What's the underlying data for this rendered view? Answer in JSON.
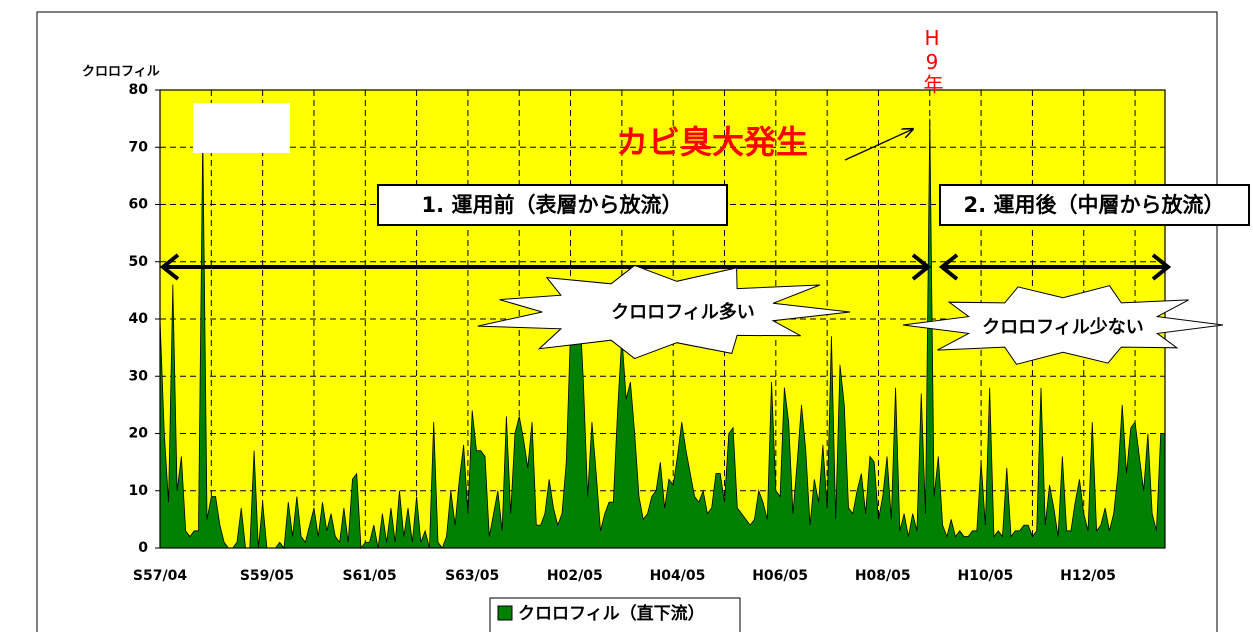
{
  "chart_data": {
    "type": "area",
    "y_label": "クロロフィル",
    "annotations": {
      "h9": "H9年",
      "event": "カビ臭大発生",
      "before": "1. 運用前（表層から放流）",
      "after": "2. 運用後（中層から放流）",
      "many": "クロロフィル多い",
      "few": "クロロフィル少ない"
    },
    "categories": [
      "S57/04",
      null,
      null,
      null,
      null,
      null,
      null,
      null,
      null,
      null,
      null,
      null,
      null,
      null,
      null,
      null,
      null,
      null,
      null,
      null,
      null,
      null,
      null,
      null,
      null,
      "S59/05",
      null,
      null,
      null,
      null,
      null,
      null,
      null,
      null,
      null,
      null,
      null,
      null,
      null,
      null,
      null,
      null,
      null,
      null,
      null,
      null,
      null,
      null,
      null,
      "S61/05",
      null,
      null,
      null,
      null,
      null,
      null,
      null,
      null,
      null,
      null,
      null,
      null,
      null,
      null,
      null,
      null,
      null,
      null,
      null,
      null,
      null,
      null,
      null,
      "S63/05",
      null,
      null,
      null,
      null,
      null,
      null,
      null,
      null,
      null,
      null,
      null,
      null,
      null,
      null,
      null,
      null,
      null,
      null,
      null,
      null,
      null,
      null,
      null,
      "H02/05",
      null,
      null,
      null,
      null,
      null,
      null,
      null,
      null,
      null,
      null,
      null,
      null,
      null,
      null,
      null,
      null,
      null,
      null,
      null,
      null,
      null,
      null,
      null,
      "H04/05",
      null,
      null,
      null,
      null,
      null,
      null,
      null,
      null,
      null,
      null,
      null,
      null,
      null,
      null,
      null,
      null,
      null,
      null,
      null,
      null,
      null,
      null,
      null,
      "H06/05",
      null,
      null,
      null,
      null,
      null,
      null,
      null,
      null,
      null,
      null,
      null,
      null,
      null,
      null,
      null,
      null,
      null,
      null,
      null,
      null,
      null,
      null,
      null,
      "H08/05",
      null,
      null,
      null,
      null,
      null,
      null,
      null,
      null,
      null,
      null,
      null,
      null,
      null,
      null,
      null,
      null,
      null,
      null,
      null,
      null,
      null,
      null,
      null,
      "H10/05",
      null,
      null,
      null,
      null,
      null,
      null,
      null,
      null,
      null,
      null,
      null,
      null,
      null,
      null,
      null,
      null,
      null,
      null,
      null,
      null,
      null,
      null,
      null,
      "H12/05",
      null,
      null,
      null,
      null,
      null,
      null,
      null,
      null,
      null,
      null,
      null,
      null,
      null,
      null,
      null,
      null,
      null,
      null
    ],
    "series": [
      {
        "name": "クロロフィル（直下流）",
        "color": "#008000",
        "values": [
          40,
          20,
          8,
          46,
          10,
          16,
          3,
          2,
          3,
          3,
          72,
          5,
          9,
          9,
          4,
          1,
          0,
          0,
          1,
          7,
          0,
          0,
          17,
          0,
          8,
          0,
          0,
          0,
          1,
          0,
          8,
          2,
          9,
          2,
          1,
          4,
          7,
          2,
          8,
          3,
          6,
          2,
          1,
          7,
          1,
          12,
          13,
          0,
          1,
          1,
          4,
          0,
          6,
          1,
          7,
          1,
          10,
          2,
          7,
          1,
          9,
          1,
          3,
          0,
          22,
          1,
          0,
          2,
          10,
          4,
          12,
          18,
          6,
          24,
          17,
          17,
          16,
          2,
          6,
          10,
          3,
          23,
          6,
          20,
          23,
          19,
          14,
          22,
          4,
          4,
          6,
          12,
          7,
          4,
          6,
          15,
          38,
          36,
          44,
          29,
          9,
          22,
          13,
          3,
          6,
          8,
          8,
          24,
          37,
          26,
          29,
          20,
          9,
          5,
          6,
          9,
          10,
          15,
          7,
          12,
          11,
          16,
          22,
          17,
          13,
          9,
          8,
          10,
          6,
          7,
          13,
          13,
          8,
          20,
          21,
          7,
          6,
          5,
          4,
          5,
          10,
          8,
          5,
          29,
          10,
          9,
          28,
          22,
          6,
          15,
          25,
          17,
          4,
          12,
          8,
          18,
          7,
          37,
          5,
          32,
          25,
          7,
          6,
          10,
          13,
          6,
          16,
          15,
          5,
          9,
          16,
          5,
          28,
          3,
          6,
          2,
          6,
          3,
          27,
          6,
          75,
          9,
          16,
          4,
          2,
          5,
          2,
          3,
          2,
          2,
          3,
          3,
          15,
          4,
          28,
          2,
          3,
          2,
          14,
          2,
          3,
          3,
          4,
          4,
          2,
          3,
          28,
          4,
          11,
          7,
          2,
          16,
          3,
          3,
          8,
          12,
          6,
          3,
          22,
          3,
          4,
          7,
          3,
          6,
          13,
          25,
          13,
          21,
          22,
          16,
          10,
          20,
          6,
          3,
          20,
          20
        ]
      }
    ],
    "ylim": [
      0,
      80
    ],
    "yticks": [
      0,
      10,
      20,
      30,
      40,
      50,
      60,
      70,
      80
    ],
    "grid": true,
    "background": "#ffff00"
  }
}
